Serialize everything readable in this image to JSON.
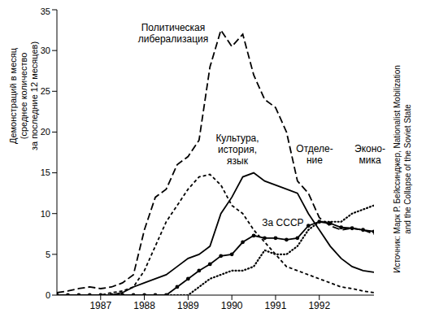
{
  "chart_data": {
    "type": "line",
    "y_label": "Демонстраций в месяц\n(среднее количество\nза последние 12 месяцев)",
    "source": "Источник: Марк Р. Бейссинджер, Nationalist Mobilization\nand the Collapse of the Soviet State",
    "x": [
      1986,
      1986.25,
      1986.5,
      1986.75,
      1987,
      1987.25,
      1987.5,
      1987.75,
      1988,
      1988.25,
      1988.5,
      1988.75,
      1989,
      1989.25,
      1989.5,
      1989.75,
      1990,
      1990.25,
      1990.5,
      1990.75,
      1991,
      1991.25,
      1991.5,
      1991.75,
      1992,
      1992.25,
      1992.5,
      1992.75,
      1993,
      1993.25
    ],
    "xlim": [
      1986,
      1993.25
    ],
    "xticks": [
      1987,
      1988,
      1989,
      1990,
      1991,
      1992
    ],
    "ylim": [
      0,
      35
    ],
    "yticks": [
      0,
      5,
      10,
      15,
      20,
      25,
      30,
      35
    ],
    "grid": false,
    "series": [
      {
        "name": "Политическая\nлиберализация",
        "color": "#000000",
        "line_style": "dashed",
        "values": [
          0.3,
          0.5,
          0.8,
          1,
          0.8,
          1,
          1.5,
          2.5,
          8,
          12,
          13,
          16,
          17,
          19,
          28,
          32.5,
          30.5,
          32,
          27,
          24,
          23,
          20,
          14,
          12.5,
          9.5,
          8.5,
          8,
          8.2,
          8,
          7.5
        ]
      },
      {
        "name": "Культура,\nистория,\nязык",
        "color": "#000000",
        "line_style": "short_dashed",
        "values": [
          0,
          0,
          0,
          0,
          0,
          0.3,
          0.5,
          1,
          3,
          6,
          9,
          11,
          13,
          14.5,
          14.8,
          13.5,
          11,
          10,
          8,
          6.5,
          5,
          3.5,
          3,
          2.5,
          2,
          1.5,
          1,
          0.8,
          0.5,
          0.3
        ]
      },
      {
        "name": "Отделе-\nние",
        "color": "#000000",
        "line_style": "solid",
        "values": [
          0,
          0,
          0,
          0,
          0,
          0,
          0.3,
          1,
          1.5,
          2,
          2.5,
          3.5,
          4.5,
          5,
          6,
          10,
          12,
          14.5,
          15,
          14,
          13.5,
          13,
          12.5,
          10,
          8,
          6,
          4.5,
          3.5,
          3,
          2.8
        ]
      },
      {
        "name": "За СССР",
        "color": "#000000",
        "line_style": "solid",
        "marker": "circle",
        "values": [
          0,
          0,
          0,
          0,
          0,
          0,
          0,
          0,
          0,
          0,
          0,
          1,
          2,
          3,
          3.8,
          4.8,
          5,
          6.5,
          7.3,
          7,
          7,
          6.8,
          7,
          8.5,
          9,
          8.8,
          8.3,
          8.2,
          8,
          7.8
        ]
      },
      {
        "name": "Эконо-\nмика",
        "color": "#000000",
        "line_style": "dotted",
        "values": [
          0,
          0,
          0,
          0,
          0,
          0,
          0,
          0,
          0,
          0,
          0,
          0,
          0,
          1,
          2,
          2.5,
          3,
          3,
          3.5,
          5.5,
          5,
          5,
          6,
          8,
          9,
          9,
          9,
          10,
          10.5,
          11
        ]
      }
    ]
  }
}
